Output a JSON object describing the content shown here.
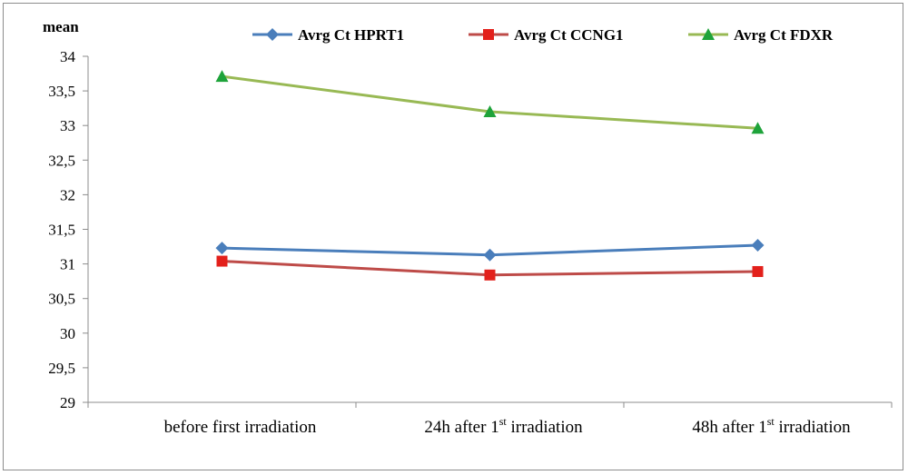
{
  "chart_data": {
    "type": "line",
    "ylabel": "mean",
    "xlabel": "",
    "ylim": [
      29,
      34
    ],
    "y_ticks": [
      "29",
      "29,5",
      "30",
      "30,5",
      "31",
      "31,5",
      "32",
      "32,5",
      "33",
      "33,5",
      "34"
    ],
    "y_tick_values": [
      29,
      29.5,
      30,
      30.5,
      31,
      31.5,
      32,
      32.5,
      33,
      33.5,
      34
    ],
    "categories": [
      {
        "main": "before first  irradiation",
        "sup": "",
        "tail": ""
      },
      {
        "main": "24h after 1",
        "sup": "st",
        "tail": " irradiation"
      },
      {
        "main": "48h after  1",
        "sup": "st",
        "tail": " irradiation"
      }
    ],
    "series": [
      {
        "name": "Avrg Ct HPRT1",
        "color": "#4a7ebb",
        "marker": "diamond",
        "values": [
          31.23,
          31.13,
          31.27
        ]
      },
      {
        "name": "Avrg Ct CCNG1",
        "color": "#be4b48",
        "marker": "square",
        "values": [
          31.04,
          30.84,
          30.89
        ]
      },
      {
        "name": "Avrg Ct FDXR",
        "color": "#98b954",
        "marker": "triangle",
        "values": [
          33.71,
          33.2,
          32.96
        ]
      }
    ],
    "grid": false,
    "legend_position": "top"
  }
}
